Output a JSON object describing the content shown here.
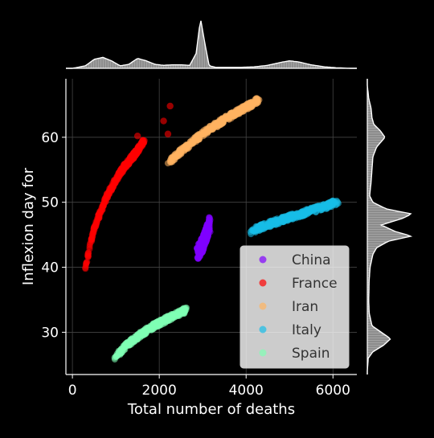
{
  "chart_data": {
    "type": "scatter",
    "xlabel": "Total number of deaths",
    "ylabel": "Inflexion day for",
    "xlim": [
      -150,
      6550
    ],
    "ylim": [
      23.5,
      69
    ],
    "x_ticks": [
      0,
      2000,
      4000,
      6000
    ],
    "x_tick_labels": [
      "0",
      "2000",
      "4000",
      "6000"
    ],
    "y_ticks": [
      30,
      40,
      50,
      60
    ],
    "y_tick_labels": [
      "30",
      "40",
      "50",
      "60"
    ],
    "grid": true,
    "legend_position": "lower-right",
    "marginal_distributions": true,
    "series": [
      {
        "name": "China",
        "color": "#8000ff",
        "x": [
          2900,
          2950,
          3000,
          3050,
          3100,
          3150
        ],
        "y": [
          42.5,
          43.0,
          43.5,
          44.5,
          45.5,
          46.5
        ],
        "cloud": "blob"
      },
      {
        "name": "France",
        "color": "#ff0000",
        "x": [
          300,
          400,
          500,
          650,
          800,
          1000,
          1200,
          1450,
          1650
        ],
        "y": [
          40.0,
          43.0,
          46.0,
          48.5,
          51.0,
          53.5,
          55.5,
          57.5,
          59.5
        ],
        "extra_points": [
          [
            1500,
            60.2
          ],
          [
            2100,
            62.5
          ],
          [
            2200,
            60.5
          ],
          [
            2250,
            64.8
          ]
        ]
      },
      {
        "name": "Iran",
        "color": "#ffb360",
        "x": [
          2200,
          2500,
          2800,
          3100,
          3400,
          3700,
          4000,
          4300
        ],
        "y": [
          56.0,
          57.8,
          59.5,
          61.0,
          62.3,
          63.5,
          64.6,
          65.8
        ]
      },
      {
        "name": "Italy",
        "color": "#18bde8",
        "x": [
          4100,
          4400,
          4700,
          5000,
          5300,
          5600,
          5900,
          6100
        ],
        "y": [
          45.5,
          46.3,
          47.0,
          47.7,
          48.3,
          48.9,
          49.5,
          50.1
        ]
      },
      {
        "name": "Spain",
        "color": "#80ffb4",
        "x": [
          1000,
          1200,
          1400,
          1600,
          1800,
          2000,
          2200,
          2400,
          2600
        ],
        "y": [
          26.2,
          27.7,
          28.8,
          29.8,
          30.7,
          31.4,
          32.1,
          32.8,
          33.4
        ]
      }
    ],
    "marginal_x_density": {
      "x": [
        0,
        300,
        500,
        700,
        900,
        1100,
        1300,
        1500,
        1700,
        1900,
        2100,
        2300,
        2500,
        2700,
        2850,
        2950,
        3050,
        3150,
        3300,
        3600,
        3900,
        4200,
        4500,
        4800,
        5000,
        5200,
        5500,
        5800,
        6100,
        6400
      ],
      "density": [
        0.0,
        0.05,
        0.18,
        0.22,
        0.15,
        0.05,
        0.08,
        0.2,
        0.15,
        0.08,
        0.06,
        0.07,
        0.07,
        0.06,
        0.3,
        1.0,
        0.5,
        0.05,
        0.02,
        0.02,
        0.02,
        0.03,
        0.06,
        0.12,
        0.15,
        0.13,
        0.07,
        0.03,
        0.01,
        0.0
      ]
    },
    "marginal_y_density": {
      "y": [
        24,
        26,
        27,
        28,
        29,
        30,
        31,
        33,
        35,
        38,
        40,
        42,
        43,
        44,
        44.8,
        45.5,
        46.5,
        47.5,
        48.2,
        49,
        50,
        51,
        53,
        55,
        57,
        58.5,
        60,
        61,
        62,
        63,
        64.5,
        66,
        68
      ],
      "density": [
        0.0,
        0.02,
        0.12,
        0.35,
        0.5,
        0.3,
        0.1,
        0.04,
        0.03,
        0.04,
        0.06,
        0.12,
        0.2,
        0.45,
        0.95,
        0.6,
        0.3,
        0.75,
        0.95,
        0.4,
        0.12,
        0.05,
        0.08,
        0.1,
        0.12,
        0.2,
        0.38,
        0.28,
        0.14,
        0.1,
        0.08,
        0.03,
        0.0
      ]
    }
  }
}
